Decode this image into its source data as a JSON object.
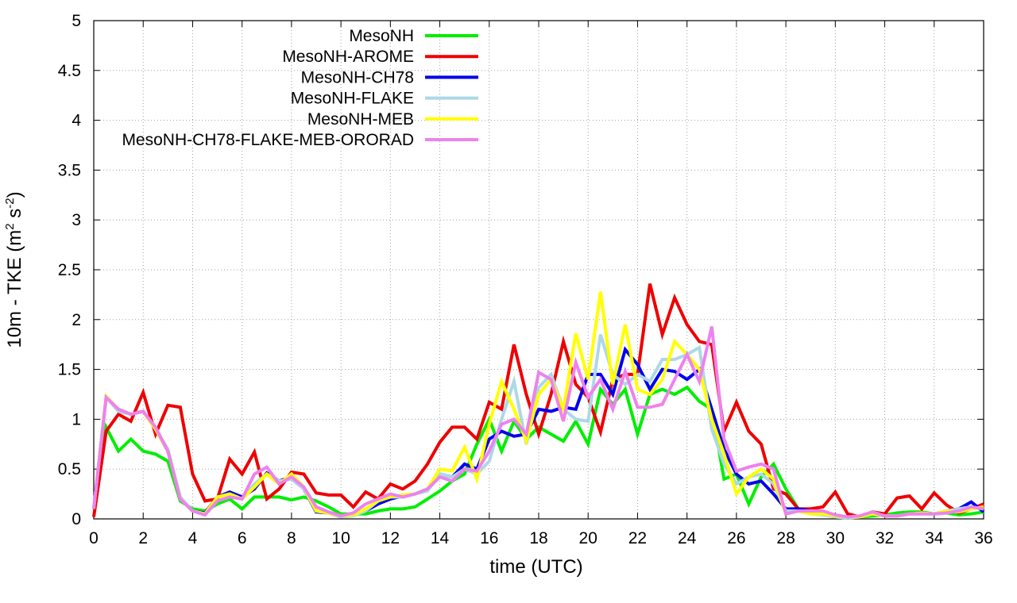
{
  "chart_data": {
    "type": "line",
    "title": "",
    "xlabel": "time (UTC)",
    "ylabel": "10m - TKE (m",
    "ylabel_parts": {
      "base": "10m - TKE (m",
      "sup1": "2",
      "mid": " s",
      "sup2": "-2",
      "end": ")"
    },
    "xlim": [
      0,
      36
    ],
    "ylim": [
      0,
      5
    ],
    "xticks": [
      0,
      2,
      4,
      6,
      8,
      10,
      12,
      14,
      16,
      18,
      20,
      22,
      24,
      26,
      28,
      30,
      32,
      34,
      36
    ],
    "yticks": [
      0,
      0.5,
      1,
      1.5,
      2,
      2.5,
      3,
      3.5,
      4,
      4.5,
      5
    ],
    "ytick_labels": [
      "0",
      "0.5",
      "1",
      "1.5",
      "2",
      "2.5",
      "3",
      "3.5",
      "4",
      "4.5",
      "5"
    ],
    "grid": true,
    "legend_position": "top-left",
    "x": [
      0,
      0.5,
      1,
      1.5,
      2,
      2.5,
      3,
      3.5,
      4,
      4.5,
      5,
      5.5,
      6,
      6.5,
      7,
      7.5,
      8,
      8.5,
      9,
      9.5,
      10,
      10.5,
      11,
      11.5,
      12,
      12.5,
      13,
      13.5,
      14,
      14.5,
      15,
      15.5,
      16,
      16.5,
      17,
      17.5,
      18,
      18.5,
      19,
      19.5,
      20,
      20.5,
      21,
      21.5,
      22,
      22.5,
      23,
      23.5,
      24,
      24.5,
      25,
      25.5,
      26,
      26.5,
      27,
      27.5,
      28,
      28.5,
      29,
      29.5,
      30,
      30.5,
      31,
      31.5,
      32,
      32.5,
      33,
      33.5,
      34,
      34.5,
      35,
      35.5,
      36
    ],
    "series": [
      {
        "name": "MesoNH",
        "color": "#00ee00",
        "values": [
          0.1,
          0.92,
          0.68,
          0.8,
          0.68,
          0.65,
          0.58,
          0.18,
          0.1,
          0.08,
          0.15,
          0.2,
          0.1,
          0.22,
          0.22,
          0.22,
          0.19,
          0.22,
          0.18,
          0.12,
          0.05,
          0.05,
          0.05,
          0.08,
          0.1,
          0.1,
          0.12,
          0.2,
          0.28,
          0.38,
          0.45,
          0.75,
          1.0,
          0.68,
          0.98,
          0.8,
          0.92,
          0.85,
          0.78,
          0.98,
          0.75,
          1.3,
          1.15,
          1.3,
          0.85,
          1.25,
          1.3,
          1.25,
          1.32,
          1.18,
          1.1,
          0.4,
          0.45,
          0.15,
          0.42,
          0.55,
          0.3,
          0.1,
          0.08,
          0.05,
          0.02,
          0.01,
          0.02,
          0.03,
          0.04,
          0.06,
          0.07,
          0.07,
          0.05,
          0.06,
          0.04,
          0.05,
          0.07
        ]
      },
      {
        "name": "MesoNH-AROME",
        "color": "#ee0000",
        "values": [
          0.02,
          0.88,
          1.05,
          0.98,
          1.27,
          0.85,
          1.14,
          1.12,
          0.45,
          0.18,
          0.2,
          0.6,
          0.45,
          0.67,
          0.2,
          0.3,
          0.47,
          0.45,
          0.26,
          0.24,
          0.24,
          0.12,
          0.27,
          0.2,
          0.35,
          0.3,
          0.38,
          0.55,
          0.77,
          0.92,
          0.92,
          0.8,
          1.17,
          1.1,
          1.75,
          1.25,
          0.85,
          1.25,
          1.78,
          1.35,
          1.22,
          0.87,
          1.4,
          1.45,
          1.45,
          2.36,
          1.85,
          2.22,
          1.95,
          1.78,
          1.75,
          0.88,
          1.17,
          0.88,
          0.75,
          0.3,
          0.25,
          0.1,
          0.1,
          0.12,
          0.27,
          0.05,
          0.02,
          0.07,
          0.05,
          0.21,
          0.23,
          0.1,
          0.26,
          0.14,
          0.06,
          0.1,
          0.15
        ]
      },
      {
        "name": "MesoNH-CH78",
        "color": "#0000ee",
        "values": [
          0.1,
          1.22,
          1.1,
          1.05,
          1.08,
          0.9,
          0.68,
          0.2,
          0.08,
          0.06,
          0.22,
          0.27,
          0.22,
          0.3,
          0.46,
          0.38,
          0.42,
          0.3,
          0.07,
          0.06,
          0.02,
          0.04,
          0.08,
          0.15,
          0.2,
          0.23,
          0.25,
          0.3,
          0.45,
          0.42,
          0.55,
          0.5,
          0.8,
          0.88,
          0.83,
          0.85,
          1.1,
          1.08,
          1.12,
          1.1,
          1.45,
          1.45,
          1.25,
          1.7,
          1.55,
          1.3,
          1.5,
          1.48,
          1.4,
          1.5,
          1.1,
          0.7,
          0.45,
          0.35,
          0.38,
          0.25,
          0.1,
          0.1,
          0.08,
          0.05,
          0.03,
          0.01,
          0.02,
          0.05,
          0.03,
          0.03,
          0.05,
          0.06,
          0.05,
          0.08,
          0.1,
          0.17,
          0.07
        ]
      },
      {
        "name": "MesoNH-FLAKE",
        "color": "#add8e6",
        "values": [
          0.1,
          1.22,
          1.08,
          1.05,
          1.08,
          0.9,
          0.7,
          0.22,
          0.08,
          0.05,
          0.22,
          0.25,
          0.2,
          0.35,
          0.45,
          0.38,
          0.4,
          0.3,
          0.08,
          0.06,
          0.02,
          0.03,
          0.08,
          0.18,
          0.22,
          0.22,
          0.25,
          0.28,
          0.45,
          0.42,
          0.5,
          0.45,
          0.58,
          1.0,
          1.38,
          0.75,
          1.32,
          1.45,
          1.1,
          1.0,
          0.98,
          1.85,
          1.45,
          1.35,
          1.45,
          1.38,
          1.6,
          1.6,
          1.65,
          1.72,
          0.9,
          0.55,
          0.35,
          0.42,
          0.45,
          0.35,
          0.08,
          0.08,
          0.05,
          0.04,
          0.02,
          0.01,
          0.02,
          0.05,
          0.03,
          0.03,
          0.05,
          0.05,
          0.05,
          0.08,
          0.1,
          0.12,
          0.1
        ]
      },
      {
        "name": "MesoNH-MEB",
        "color": "#ffff00",
        "values": [
          0.1,
          1.23,
          1.1,
          1.05,
          1.08,
          0.9,
          0.68,
          0.2,
          0.08,
          0.05,
          0.22,
          0.25,
          0.2,
          0.32,
          0.45,
          0.35,
          0.45,
          0.32,
          0.08,
          0.06,
          0.03,
          0.04,
          0.1,
          0.18,
          0.22,
          0.24,
          0.25,
          0.3,
          0.5,
          0.48,
          0.72,
          0.4,
          0.95,
          1.38,
          1.1,
          0.78,
          1.25,
          1.4,
          1.1,
          1.86,
          1.4,
          2.28,
          1.35,
          1.95,
          1.3,
          1.25,
          1.4,
          1.78,
          1.65,
          1.5,
          1.0,
          0.65,
          0.25,
          0.42,
          0.5,
          0.4,
          0.05,
          0.08,
          0.05,
          0.05,
          0.03,
          0.02,
          0.02,
          0.05,
          0.03,
          0.03,
          0.05,
          0.06,
          0.05,
          0.08,
          0.07,
          0.1,
          0.12
        ]
      },
      {
        "name": "MesoNH-CH78-FLAKE-MEB-ORORAD",
        "color": "#ee82ee",
        "values": [
          0.1,
          1.22,
          1.1,
          1.05,
          1.08,
          0.92,
          0.68,
          0.2,
          0.08,
          0.04,
          0.18,
          0.22,
          0.2,
          0.45,
          0.52,
          0.35,
          0.42,
          0.32,
          0.12,
          0.07,
          0.03,
          0.06,
          0.15,
          0.2,
          0.25,
          0.22,
          0.25,
          0.3,
          0.42,
          0.38,
          0.5,
          0.48,
          0.68,
          0.95,
          1.0,
          0.85,
          1.47,
          1.4,
          0.98,
          1.57,
          1.22,
          1.4,
          1.1,
          1.48,
          1.12,
          1.12,
          1.15,
          1.4,
          1.65,
          1.38,
          1.93,
          0.8,
          0.48,
          0.52,
          0.55,
          0.5,
          0.05,
          0.08,
          0.08,
          0.08,
          0.04,
          0.02,
          0.03,
          0.07,
          0.03,
          0.03,
          0.05,
          0.05,
          0.05,
          0.06,
          0.08,
          0.12,
          0.1
        ]
      }
    ]
  }
}
